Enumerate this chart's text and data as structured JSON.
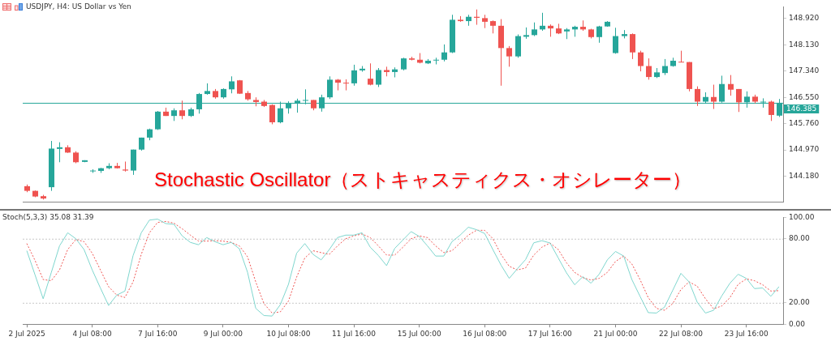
{
  "chart_data": [
    {
      "type": "candlestick",
      "title": "USDJPY, H4:  US Dollar vs Yen",
      "annotations": [
        "Stochastic Oscillator（ストキャスティクス・オシレーター）"
      ],
      "categories": [
        null,
        null,
        null,
        null,
        null,
        null,
        null,
        null,
        null,
        null,
        null,
        null,
        null,
        null,
        null,
        null,
        null,
        null,
        null,
        null,
        null,
        null,
        null,
        null,
        null,
        null,
        null,
        null,
        null,
        null,
        null,
        null,
        null,
        null,
        null,
        null,
        null,
        null,
        null,
        null,
        null,
        null,
        null,
        null,
        null,
        null,
        null,
        null,
        null,
        null,
        null,
        null,
        null,
        null,
        null,
        null,
        null,
        null,
        null,
        null,
        null,
        null,
        null,
        null,
        null,
        null,
        null,
        null,
        null,
        null,
        null,
        null,
        null,
        null,
        null,
        null,
        null,
        null,
        null,
        null,
        null,
        null,
        null,
        null,
        null,
        null,
        null,
        null,
        null,
        null,
        null,
        null,
        null
      ],
      "ohlc": [
        [
          143.88,
          143.93,
          143.7,
          143.74
        ],
        [
          143.74,
          143.75,
          143.55,
          143.57
        ],
        [
          143.58,
          143.62,
          143.48,
          143.51
        ],
        [
          143.85,
          145.24,
          143.74,
          145.01
        ],
        [
          145.0,
          145.2,
          144.6,
          145.05
        ],
        [
          145.05,
          145.11,
          144.88,
          144.89
        ],
        [
          144.89,
          144.93,
          144.57,
          144.6
        ],
        [
          144.61,
          144.66,
          144.6,
          144.66
        ],
        [
          144.34,
          144.39,
          144.28,
          144.35
        ],
        [
          144.34,
          144.43,
          144.28,
          144.42
        ],
        [
          144.42,
          144.57,
          144.39,
          144.49
        ],
        [
          144.49,
          144.58,
          144.41,
          144.42
        ],
        [
          144.38,
          144.62,
          144.32,
          144.35
        ],
        [
          144.35,
          144.98,
          144.22,
          144.98
        ],
        [
          144.98,
          145.34,
          144.95,
          145.34
        ],
        [
          145.34,
          145.61,
          145.26,
          145.59
        ],
        [
          145.59,
          146.14,
          145.57,
          146.12
        ],
        [
          146.12,
          146.24,
          145.99,
          145.99
        ],
        [
          145.99,
          146.22,
          145.84,
          146.16
        ],
        [
          146.16,
          146.45,
          145.89,
          145.99
        ],
        [
          145.99,
          146.24,
          145.96,
          146.19
        ],
        [
          146.19,
          146.68,
          146.06,
          146.65
        ],
        [
          146.65,
          146.97,
          146.63,
          146.74
        ],
        [
          146.74,
          146.8,
          146.51,
          146.55
        ],
        [
          146.55,
          146.82,
          146.51,
          146.8
        ],
        [
          146.79,
          147.18,
          146.67,
          147.03
        ],
        [
          147.06,
          147.07,
          146.65,
          146.66
        ],
        [
          146.68,
          146.74,
          146.45,
          146.49
        ],
        [
          146.47,
          146.55,
          146.28,
          146.41
        ],
        [
          146.42,
          146.47,
          146.26,
          146.29
        ],
        [
          146.32,
          146.34,
          145.74,
          145.8
        ],
        [
          145.8,
          146.42,
          145.77,
          146.22
        ],
        [
          146.22,
          146.43,
          146.06,
          146.36
        ],
        [
          146.36,
          146.51,
          146.09,
          146.45
        ],
        [
          146.45,
          146.79,
          146.34,
          146.47
        ],
        [
          146.47,
          146.47,
          146.16,
          146.22
        ],
        [
          146.22,
          146.63,
          146.12,
          146.55
        ],
        [
          146.55,
          147.18,
          146.5,
          147.08
        ],
        [
          147.08,
          147.1,
          146.76,
          146.99
        ],
        [
          146.99,
          147.09,
          146.76,
          146.97
        ],
        [
          146.97,
          147.53,
          146.9,
          147.36
        ],
        [
          147.36,
          147.49,
          147.32,
          147.41
        ],
        [
          147.11,
          147.57,
          146.91,
          146.93
        ],
        [
          146.93,
          147.43,
          146.86,
          147.37
        ],
        [
          147.37,
          147.47,
          147.18,
          147.31
        ],
        [
          147.31,
          147.45,
          147.15,
          147.39
        ],
        [
          147.39,
          147.74,
          147.36,
          147.72
        ],
        [
          147.72,
          147.77,
          147.66,
          147.68
        ],
        [
          147.68,
          147.88,
          147.57,
          147.59
        ],
        [
          147.57,
          147.7,
          147.55,
          147.65
        ],
        [
          147.67,
          147.74,
          147.54,
          147.68
        ],
        [
          147.68,
          148.14,
          147.63,
          147.9
        ],
        [
          147.9,
          149.03,
          147.88,
          148.88
        ],
        [
          148.88,
          148.99,
          148.82,
          148.84
        ],
        [
          148.84,
          149.03,
          148.7,
          148.97
        ],
        [
          148.97,
          149.19,
          148.73,
          148.94
        ],
        [
          148.93,
          149.03,
          148.63,
          148.82
        ],
        [
          148.84,
          148.86,
          148.47,
          148.7
        ],
        [
          148.7,
          148.9,
          146.9,
          148.03
        ],
        [
          148.03,
          148.09,
          147.47,
          147.78
        ],
        [
          147.78,
          148.44,
          147.74,
          148.39
        ],
        [
          148.37,
          148.65,
          148.31,
          148.42
        ],
        [
          148.42,
          148.8,
          148.39,
          148.59
        ],
        [
          148.59,
          149.09,
          148.55,
          148.7
        ],
        [
          148.7,
          148.74,
          148.37,
          148.62
        ],
        [
          148.62,
          148.76,
          148.45,
          148.47
        ],
        [
          148.53,
          148.63,
          148.3,
          148.59
        ],
        [
          148.59,
          148.7,
          148.37,
          148.67
        ],
        [
          148.67,
          148.86,
          148.55,
          148.59
        ],
        [
          148.59,
          148.61,
          148.32,
          148.36
        ],
        [
          148.36,
          148.7,
          148.19,
          148.68
        ],
        [
          148.68,
          148.84,
          148.67,
          148.82
        ],
        [
          147.88,
          148.64,
          147.86,
          148.39
        ],
        [
          148.39,
          148.57,
          148.32,
          148.45
        ],
        [
          148.45,
          148.47,
          147.7,
          147.9
        ],
        [
          147.9,
          147.95,
          147.33,
          147.49
        ],
        [
          147.49,
          147.72,
          147.08,
          147.16
        ],
        [
          147.16,
          147.43,
          147.13,
          147.3
        ],
        [
          147.28,
          147.7,
          147.22,
          147.49
        ],
        [
          147.49,
          147.74,
          147.47,
          147.65
        ],
        [
          147.62,
          147.95,
          147.6,
          147.6
        ],
        [
          147.61,
          147.61,
          146.73,
          146.8
        ],
        [
          146.8,
          146.88,
          146.29,
          146.42
        ],
        [
          146.42,
          146.7,
          146.37,
          146.56
        ],
        [
          146.56,
          146.93,
          146.2,
          146.42
        ],
        [
          146.42,
          147.2,
          146.39,
          146.95
        ],
        [
          146.95,
          147.22,
          146.6,
          146.78
        ],
        [
          146.8,
          146.8,
          146.11,
          146.4
        ],
        [
          146.4,
          146.73,
          146.24,
          146.57
        ],
        [
          146.57,
          146.63,
          146.37,
          146.42
        ],
        [
          146.41,
          146.52,
          146.24,
          146.42
        ],
        [
          146.42,
          146.45,
          145.84,
          146.02
        ],
        [
          146.0,
          146.5,
          145.96,
          146.385
        ]
      ],
      "colors": [
        "#ef5350",
        "#ef5350",
        "#ef5350",
        "#26a69a",
        "#26a69a",
        "#ef5350",
        "#ef5350",
        "#26a69a",
        "#26a69a",
        "#26a69a",
        "#26a69a",
        "#ef5350",
        "#ef5350",
        "#26a69a",
        "#26a69a",
        "#26a69a",
        "#26a69a",
        "#ef5350",
        "#26a69a",
        "#ef5350",
        "#26a69a",
        "#26a69a",
        "#26a69a",
        "#ef5350",
        "#26a69a",
        "#26a69a",
        "#ef5350",
        "#ef5350",
        "#ef5350",
        "#ef5350",
        "#ef5350",
        "#26a69a",
        "#26a69a",
        "#26a69a",
        "#26a69a",
        "#ef5350",
        "#26a69a",
        "#26a69a",
        "#ef5350",
        "#ef5350",
        "#26a69a",
        "#26a69a",
        "#ef5350",
        "#26a69a",
        "#ef5350",
        "#26a69a",
        "#26a69a",
        "#ef5350",
        "#ef5350",
        "#26a69a",
        "#26a69a",
        "#26a69a",
        "#26a69a",
        "#ef5350",
        "#26a69a",
        "#ef5350",
        "#ef5350",
        "#ef5350",
        "#ef5350",
        "#ef5350",
        "#26a69a",
        "#26a69a",
        "#26a69a",
        "#26a69a",
        "#ef5350",
        "#ef5350",
        "#26a69a",
        "#26a69a",
        "#ef5350",
        "#ef5350",
        "#26a69a",
        "#26a69a",
        "#26a69a",
        "#26a69a",
        "#ef5350",
        "#ef5350",
        "#ef5350",
        "#26a69a",
        "#26a69a",
        "#26a69a",
        "#ef5350",
        "#ef5350",
        "#ef5350",
        "#26a69a",
        "#ef5350",
        "#26a69a",
        "#ef5350",
        "#ef5350",
        "#26a69a",
        "#ef5350",
        "#26a69a",
        "#ef5350",
        "#26a69a"
      ],
      "ylim": [
        143.4,
        149.27
      ],
      "yticks": [
        {
          "value": 144.18,
          "label": "144.180"
        },
        {
          "value": 144.97,
          "label": "144.970"
        },
        {
          "value": 145.76,
          "label": "145.760"
        },
        {
          "value": 146.55,
          "label": "146.550"
        },
        {
          "value": 147.34,
          "label": "147.340"
        },
        {
          "value": 148.13,
          "label": "148.130"
        },
        {
          "value": 148.92,
          "label": "148.920"
        }
      ],
      "ref_lines": [
        {
          "axis": "y",
          "value": 146.385,
          "label": "146.385",
          "color": "#26a69a"
        }
      ],
      "tick_labels": "y"
    },
    {
      "type": "line",
      "title": "Stoch(5,3,3) 35.08 31.39",
      "categories": [
        "2 Jul 2025",
        null,
        null,
        null,
        null,
        null,
        null,
        null,
        "4 Jul 08:00",
        null,
        null,
        null,
        null,
        null,
        null,
        null,
        "7 Jul 16:00",
        null,
        null,
        null,
        null,
        null,
        null,
        null,
        "9 Jul 00:00",
        null,
        null,
        null,
        null,
        null,
        null,
        null,
        "10 Jul 08:00",
        null,
        null,
        null,
        null,
        null,
        null,
        null,
        "11 Jul 16:00",
        null,
        null,
        null,
        null,
        null,
        null,
        null,
        "15 Jul 00:00",
        null,
        null,
        null,
        null,
        null,
        null,
        null,
        "16 Jul 08:00",
        null,
        null,
        null,
        null,
        null,
        null,
        null,
        "17 Jul 16:00",
        null,
        null,
        null,
        null,
        null,
        null,
        null,
        "21 Jul 00:00",
        null,
        null,
        null,
        null,
        null,
        null,
        null,
        "22 Jul 08:00",
        null,
        null,
        null,
        null,
        null,
        null,
        null,
        "23 Jul 16:00",
        null,
        null,
        null,
        null
      ],
      "series": [
        {
          "color": "#7fd6ce",
          "line_style": "solid",
          "values": [
            68.8,
            46.3,
            23.8,
            48.5,
            73.3,
            85.6,
            80.0,
            69.9,
            50.8,
            33.9,
            17.5,
            27.2,
            31.0,
            64.3,
            85.6,
            97.5,
            98.4,
            94.2,
            93.5,
            82.7,
            76.6,
            74.4,
            81.1,
            77.3,
            74.4,
            76.6,
            70.6,
            48.5,
            14.8,
            8.1,
            7.6,
            18.2,
            37.3,
            66.5,
            75.5,
            65.4,
            60.2,
            69.9,
            81.1,
            83.4,
            83.4,
            85.6,
            72.1,
            64.3,
            54.8,
            71.0,
            78.9,
            86.7,
            82.2,
            73.3,
            63.8,
            63.8,
            77.3,
            83.4,
            90.8,
            88.5,
            84.9,
            69.9,
            55.3,
            42.9,
            51.9,
            60.5,
            76.2,
            78.2,
            76.0,
            62.0,
            48.1,
            36.9,
            44.5,
            38.4,
            46.7,
            60.2,
            68.1,
            63.8,
            41.8,
            26.1,
            10.8,
            10.4,
            16.0,
            31.7,
            47.6,
            39.6,
            20.5,
            10.4,
            13.0,
            26.5,
            38.4,
            46.7,
            42.9,
            33.3,
            33.9,
            26.1,
            35.08
          ]
        },
        {
          "color": "#ef5350",
          "line_style": "dotted",
          "values": [
            75.5,
            59.8,
            41.8,
            40.7,
            50.8,
            69.9,
            79.3,
            77.3,
            66.5,
            50.8,
            35.1,
            27.2,
            25.0,
            39.6,
            65.4,
            85.6,
            95.3,
            96.2,
            94.6,
            89.4,
            83.4,
            77.8,
            77.8,
            78.2,
            77.8,
            76.6,
            73.3,
            63.1,
            39.6,
            19.3,
            10.4,
            11.5,
            21.6,
            44.1,
            62.0,
            68.8,
            67.0,
            65.4,
            73.3,
            80.0,
            82.7,
            84.5,
            81.1,
            73.3,
            64.7,
            64.7,
            72.1,
            80.0,
            82.7,
            81.1,
            73.3,
            67.0,
            68.8,
            76.0,
            83.4,
            87.9,
            87.9,
            80.0,
            65.4,
            54.2,
            50.8,
            52.6,
            64.7,
            72.1,
            76.0,
            69.9,
            57.5,
            48.5,
            43.6,
            41.3,
            42.9,
            48.5,
            58.7,
            63.8,
            56.4,
            41.8,
            24.9,
            14.8,
            13.0,
            19.3,
            32.4,
            39.6,
            35.5,
            23.8,
            14.4,
            17.0,
            24.9,
            37.3,
            42.4,
            40.7,
            36.9,
            31.0,
            31.39
          ]
        }
      ],
      "ylim": [
        0,
        100
      ],
      "yticks": [
        {
          "value": 0,
          "label": "0.00"
        },
        {
          "value": 20,
          "label": "20.00"
        },
        {
          "value": 80,
          "label": "80.00"
        },
        {
          "value": 100,
          "label": "100.00"
        }
      ],
      "ref_lines": [
        {
          "axis": "y",
          "value": 20,
          "color": "#c8c8c8",
          "line_style": "dotted"
        },
        {
          "axis": "y",
          "value": 80,
          "color": "#c8c8c8",
          "line_style": "dotted"
        }
      ]
    }
  ]
}
